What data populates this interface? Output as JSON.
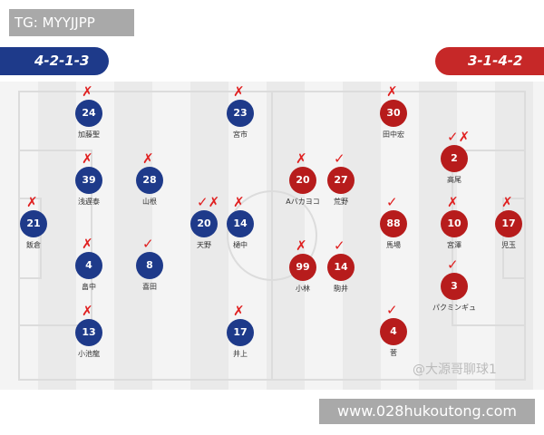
{
  "tg_label": "TG: MYYJJPP",
  "home": {
    "formation": "4-2-1-3",
    "color": "#1e3a8a"
  },
  "away": {
    "formation": "3-1-4-2",
    "color": "#b71c1c"
  },
  "players": [
    {
      "team": "blue",
      "number": "24",
      "name": "加藤聖",
      "mark": "✗"
    },
    {
      "team": "blue",
      "number": "39",
      "name": "浅遅泰",
      "mark": "✗"
    },
    {
      "team": "blue",
      "number": "21",
      "name": "飯倉",
      "mark": "✗"
    },
    {
      "team": "blue",
      "number": "4",
      "name": "畠中",
      "mark": "✗"
    },
    {
      "team": "blue",
      "number": "13",
      "name": "小池龍",
      "mark": "✗"
    },
    {
      "team": "blue",
      "number": "28",
      "name": "山根",
      "mark": "✗"
    },
    {
      "team": "blue",
      "number": "8",
      "name": "喜田",
      "mark": "✓"
    },
    {
      "team": "blue",
      "number": "20",
      "name": "天野",
      "mark": "✓✗"
    },
    {
      "team": "blue",
      "number": "23",
      "name": "宮市",
      "mark": "✗"
    },
    {
      "team": "blue",
      "number": "14",
      "name": "樋中",
      "mark": "✗"
    },
    {
      "team": "blue",
      "number": "17",
      "name": "井上",
      "mark": "✗"
    },
    {
      "team": "red",
      "number": "20",
      "name": "Aバカヨコ",
      "mark": "✗"
    },
    {
      "team": "red",
      "number": "27",
      "name": "荒野",
      "mark": "✓"
    },
    {
      "team": "red",
      "number": "99",
      "name": "小林",
      "mark": "✗"
    },
    {
      "team": "red",
      "number": "14",
      "name": "駒井",
      "mark": "✓"
    },
    {
      "team": "red",
      "number": "30",
      "name": "田中宏",
      "mark": "✗"
    },
    {
      "team": "red",
      "number": "88",
      "name": "馬場",
      "mark": "✓"
    },
    {
      "team": "red",
      "number": "4",
      "name": "菅",
      "mark": "✓"
    },
    {
      "team": "red",
      "number": "2",
      "name": "高尾",
      "mark": "✓✗"
    },
    {
      "team": "red",
      "number": "10",
      "name": "宮澤",
      "mark": "✗"
    },
    {
      "team": "red",
      "number": "3",
      "name": "パクミンギュ",
      "mark": "✓"
    },
    {
      "team": "red",
      "number": "17",
      "name": "児玉",
      "mark": "✗"
    }
  ],
  "watermark": "@大源哥聊球1",
  "url": "www.028hukoutong.com"
}
